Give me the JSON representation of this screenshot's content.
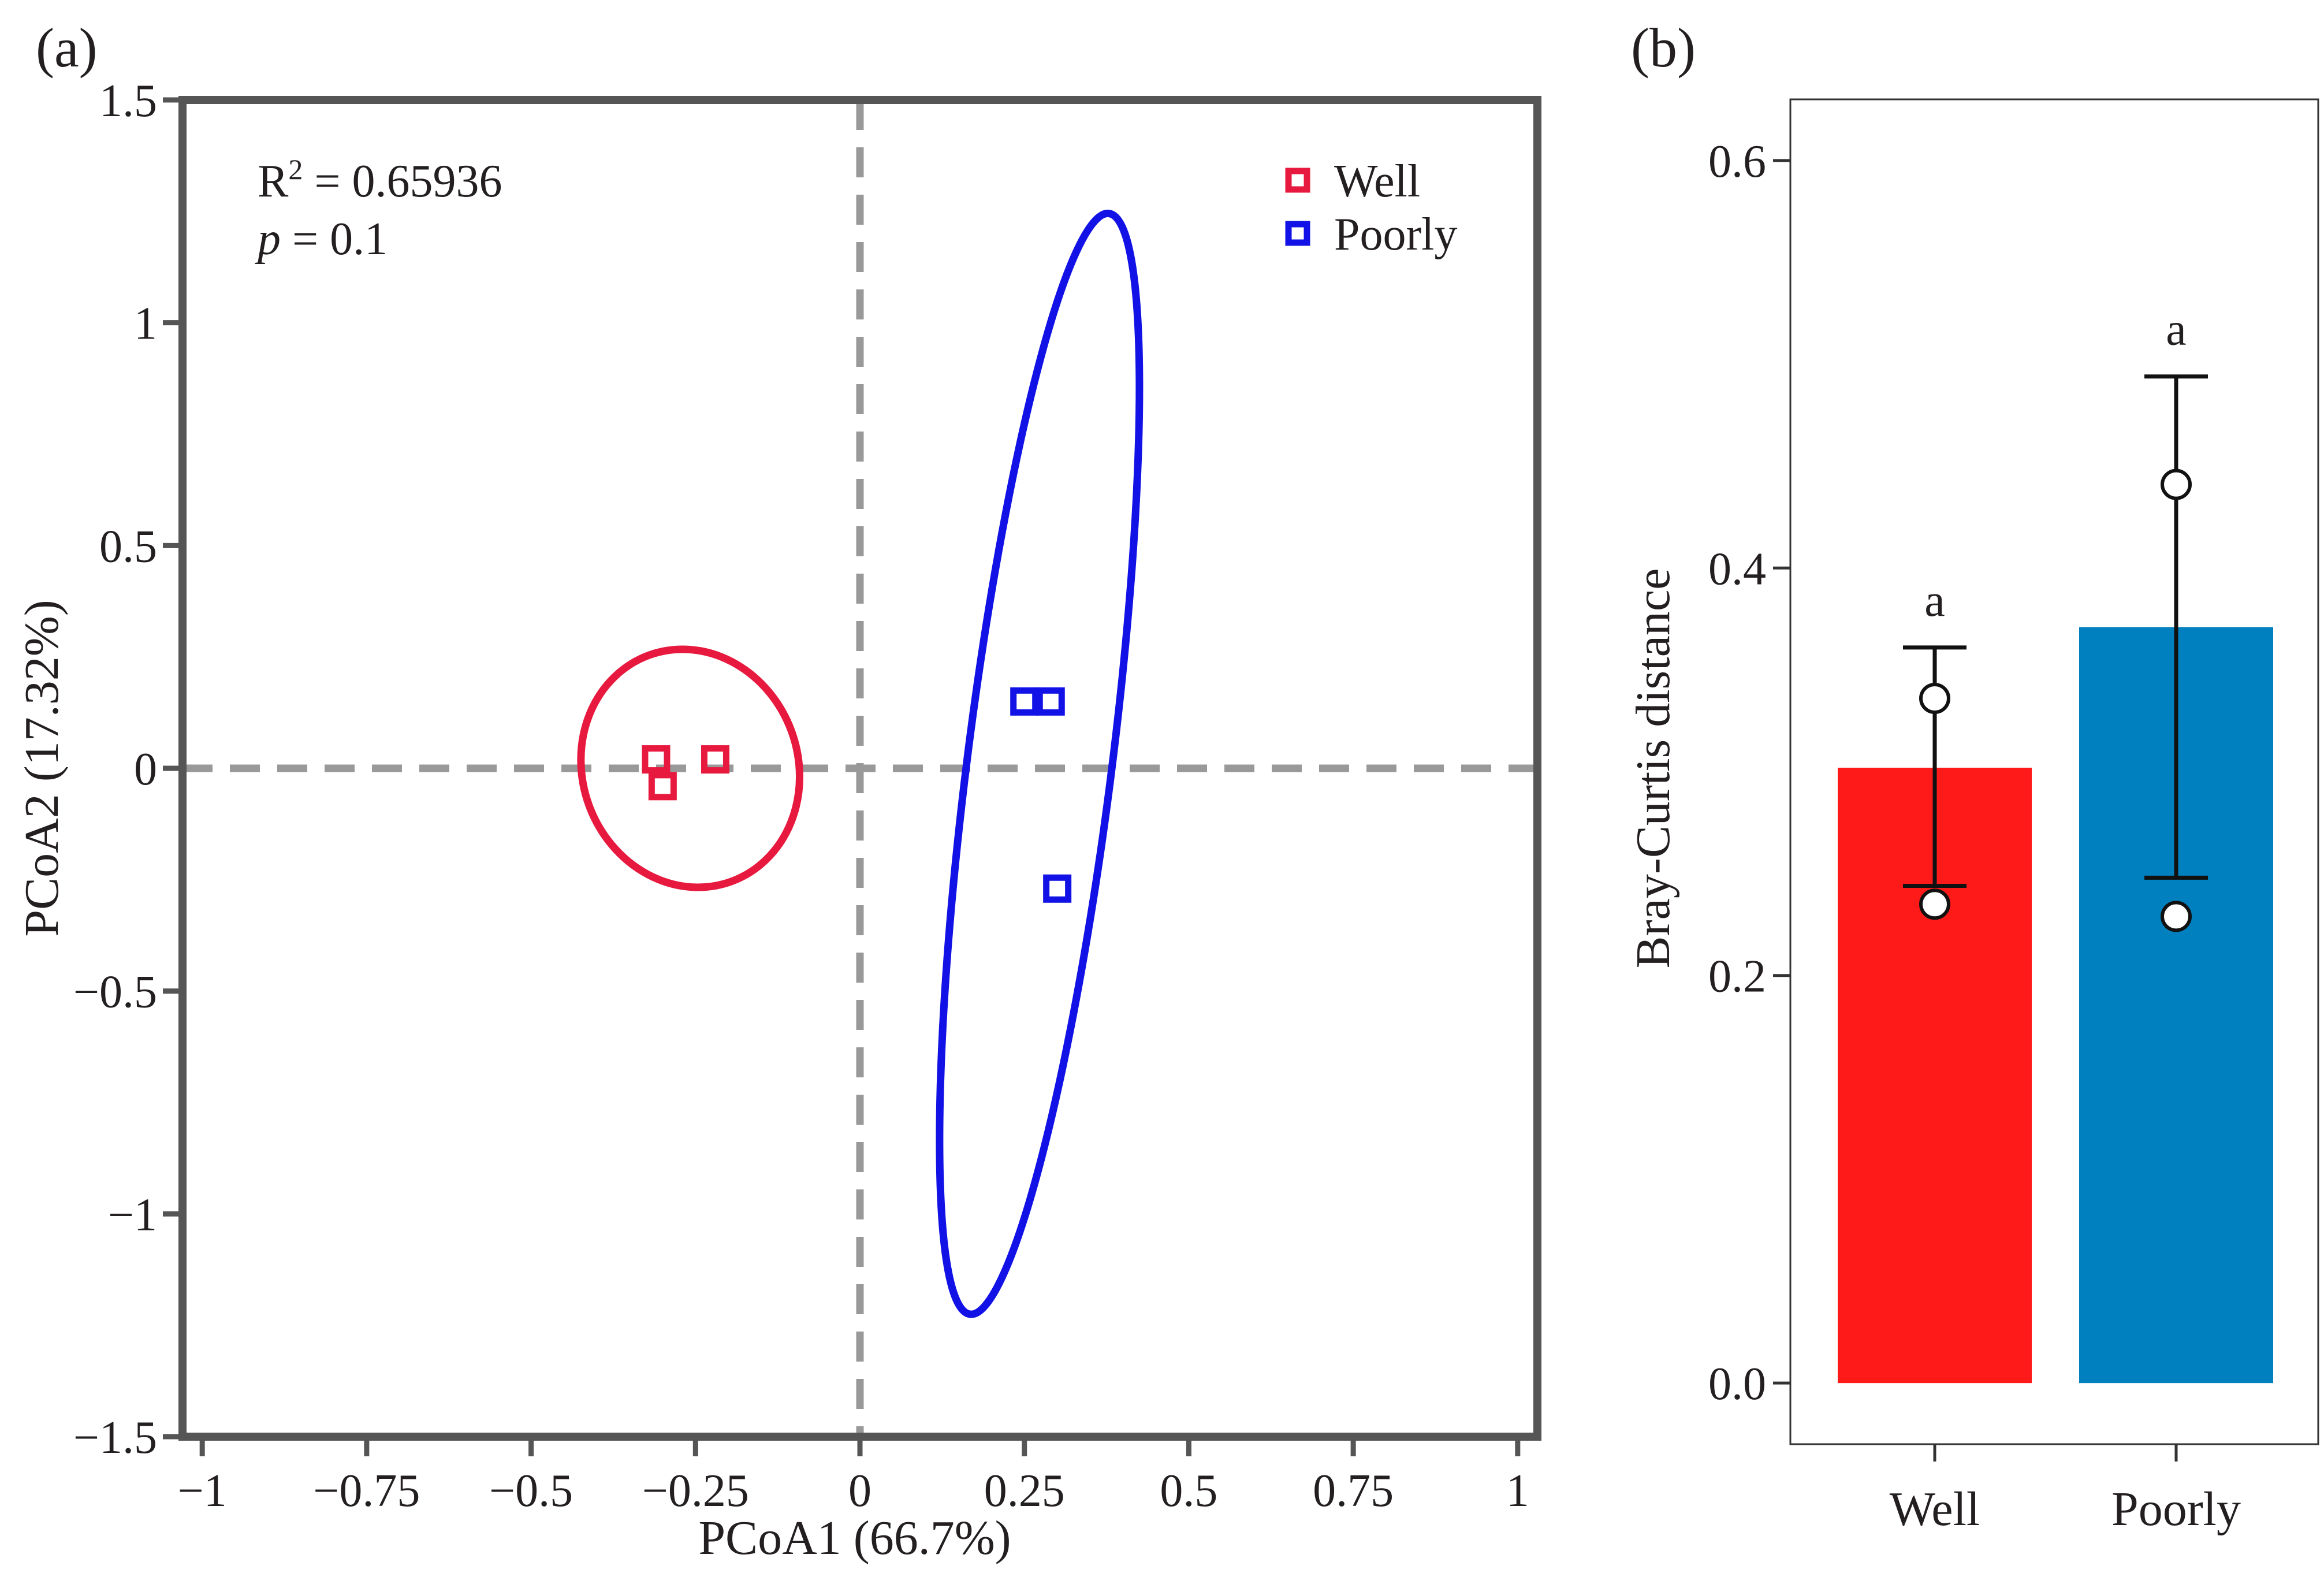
{
  "panels": {
    "a": "(a)",
    "b": "(b)"
  },
  "colors": {
    "well_pcoa": "#e8193e",
    "poorly_pcoa": "#1212e6",
    "well_bar": "#ff1a1a",
    "poorly_bar": "#0080be",
    "zero_line": "#999999",
    "frame": "#555555"
  },
  "chart_data": [
    {
      "type": "scatter",
      "panel": "(a)",
      "xlabel": "PCoA1 (66.7%)",
      "ylabel": "PCoA2 (17.32%)",
      "xlim": [
        -1.03,
        1.03
      ],
      "ylim": [
        -1.5,
        1.5
      ],
      "xticks": [
        -1,
        -0.75,
        -0.5,
        -0.25,
        0,
        0.25,
        0.5,
        0.75,
        1
      ],
      "xtick_labels": [
        "−1",
        "−0.75",
        "−0.5",
        "−0.25",
        "0",
        "0.25",
        "0.5",
        "0.75",
        "1"
      ],
      "yticks": [
        -1.5,
        -1,
        -0.5,
        0,
        0.5,
        1,
        1.5
      ],
      "ytick_labels": [
        "−1.5",
        "−1",
        "−0.5",
        "0",
        "0.5",
        "1",
        "1.5"
      ],
      "annotation": {
        "r2_label": "R",
        "r2_sup": "2",
        "r2_value": " = 0.65936",
        "p_label": "p",
        "p_value": " = 0.1"
      },
      "series": [
        {
          "name": "Well",
          "color": "#e8193e",
          "points": [
            [
              -0.31,
              0.02
            ],
            [
              -0.3,
              -0.04
            ],
            [
              -0.22,
              0.02
            ]
          ],
          "ellipse": {
            "cx": -0.258,
            "cy": 0.0,
            "rx": 0.242,
            "ry": 0.183,
            "rotate_deg": 20
          }
        },
        {
          "name": "Poorly",
          "color": "#1212e6",
          "points": [
            [
              0.25,
              0.15
            ],
            [
              0.29,
              0.15
            ],
            [
              0.3,
              -0.27
            ]
          ],
          "ellipse": {
            "cx": 0.273,
            "cy": 0.01,
            "rx": 1.245,
            "ry": 0.11,
            "rotate_deg": 82.8
          }
        }
      ],
      "legend": {
        "position": "top-right",
        "entries": [
          "Well",
          "Poorly"
        ]
      }
    },
    {
      "type": "bar",
      "panel": "(b)",
      "ylabel": "Bray-Curtis distance",
      "ylim": [
        -0.03,
        0.63
      ],
      "yticks": [
        0,
        0.2,
        0.4,
        0.6
      ],
      "ytick_labels": [
        "0.0",
        "0.2",
        "0.4",
        "0.6"
      ],
      "categories": [
        "Well",
        "Poorly"
      ],
      "values": [
        0.302,
        0.371
      ],
      "error_bars": [
        {
          "low": 0.244,
          "high": 0.361
        },
        {
          "low": 0.248,
          "high": 0.494
        }
      ],
      "points": [
        [
          0.336,
          0.235
        ],
        [
          0.441,
          0.229
        ]
      ],
      "significance": [
        "a",
        "a"
      ],
      "colors": [
        "#ff1a1a",
        "#0080be"
      ]
    }
  ]
}
